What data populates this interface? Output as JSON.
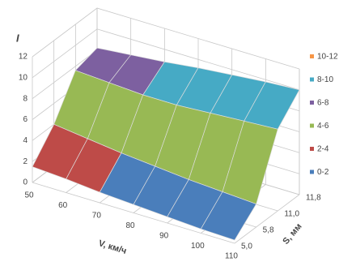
{
  "chart_data": {
    "type": "surface",
    "x_label": "V, км/ч",
    "depth_label": "S, мм",
    "z_label": "I",
    "categories": [
      "50",
      "60",
      "70",
      "80",
      "90",
      "100",
      "110"
    ],
    "depth_categories": [
      "5,0",
      "5,8",
      "11,0",
      "11,8"
    ],
    "values": [
      [
        1.5,
        1.3,
        1.0,
        0.8,
        0.6,
        0.4,
        0.3
      ],
      [
        4.0,
        3.6,
        3.2,
        2.9,
        2.6,
        2.4,
        2.2
      ],
      [
        7.6,
        7.4,
        7.2,
        7.2,
        7.4,
        7.6,
        7.8
      ],
      [
        8.2,
        8.5,
        8.8,
        9.2,
        9.5,
        9.8,
        10.0
      ]
    ],
    "zlim": [
      0,
      12
    ],
    "zticks": [
      0,
      2,
      4,
      6,
      8,
      10,
      12
    ],
    "legend": [
      {
        "label": "10-12",
        "color": "#f79646"
      },
      {
        "label": "8-10",
        "color": "#46aac5"
      },
      {
        "label": "6-8",
        "color": "#7d60a0"
      },
      {
        "label": "4-6",
        "color": "#98b954"
      },
      {
        "label": "2-4",
        "color": "#be4b48"
      },
      {
        "label": "0-2",
        "color": "#4a7ebb"
      }
    ]
  }
}
